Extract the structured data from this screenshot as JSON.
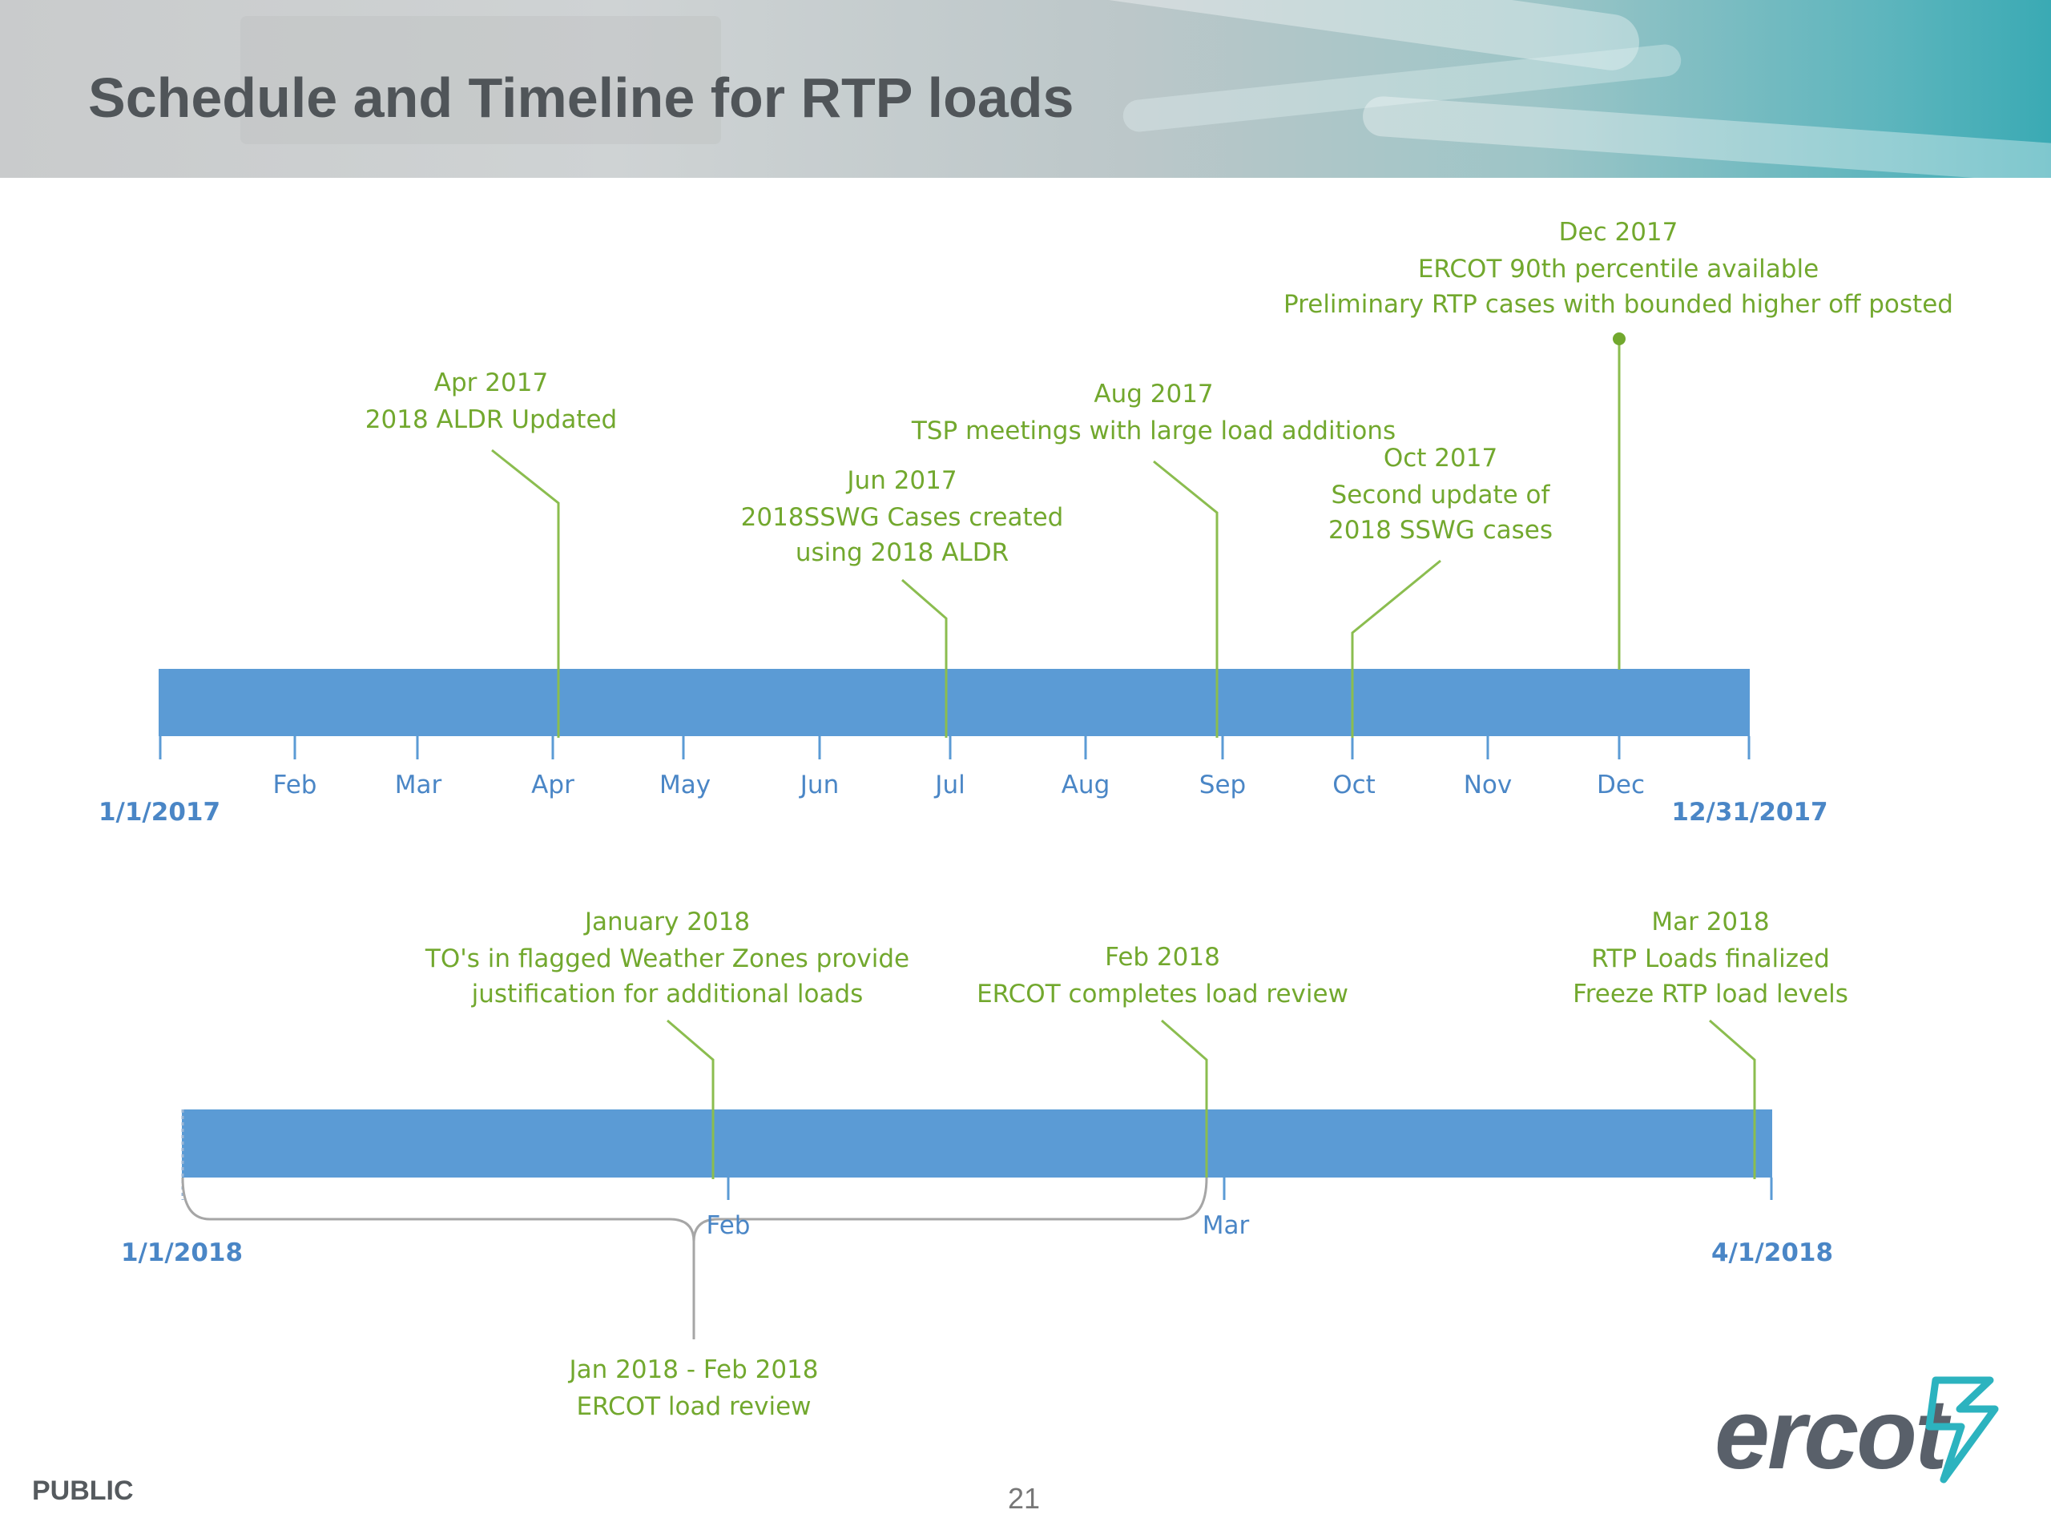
{
  "slide": {
    "title": "Schedule and Timeline for RTP loads",
    "footer_label": "PUBLIC",
    "page_number": "21",
    "logo_text": "ercot"
  },
  "colors": {
    "bar": "#5b9bd5",
    "annotation": "#72a82e",
    "axis_text": "#4a86c6",
    "connector": "#8bbd4f",
    "bracket": "#a6a6a6"
  },
  "timeline_2017": {
    "start_label": "1/1/2017",
    "end_label": "12/31/2017",
    "month_ticks": [
      "Feb",
      "Mar",
      "Apr",
      "May",
      "Jun",
      "Jul",
      "Aug",
      "Sep",
      "Oct",
      "Nov",
      "Dec"
    ],
    "milestones": [
      {
        "id": "apr-2017",
        "lines": [
          "Apr 2017",
          "2018 ALDR Updated"
        ]
      },
      {
        "id": "jun-2017",
        "lines": [
          "Jun 2017",
          "2018SSWG Cases created",
          "using 2018 ALDR"
        ]
      },
      {
        "id": "aug-2017",
        "lines": [
          "Aug 2017",
          "TSP meetings with large load additions"
        ]
      },
      {
        "id": "oct-2017",
        "lines": [
          "Oct 2017",
          "Second update of",
          "2018 SSWG cases"
        ]
      },
      {
        "id": "dec-2017",
        "lines": [
          "Dec 2017",
          "ERCOT 90th percentile available",
          "Preliminary RTP cases with bounded higher off posted"
        ]
      }
    ]
  },
  "timeline_2018": {
    "start_label": "1/1/2018",
    "end_label": "4/1/2018",
    "month_ticks": [
      "Feb",
      "Mar"
    ],
    "milestones": [
      {
        "id": "jan-2018",
        "lines": [
          "January 2018",
          "TO's in flagged Weather Zones provide",
          "justification for additional loads"
        ]
      },
      {
        "id": "feb-2018",
        "lines": [
          "Feb 2018",
          "ERCOT completes load review"
        ]
      },
      {
        "id": "mar-2018",
        "lines": [
          "Mar 2018",
          "RTP Loads finalized",
          "Freeze RTP load levels"
        ]
      }
    ],
    "span": {
      "id": "jan-feb-2018",
      "lines": [
        "Jan 2018 - Feb 2018",
        "ERCOT load review"
      ]
    }
  }
}
